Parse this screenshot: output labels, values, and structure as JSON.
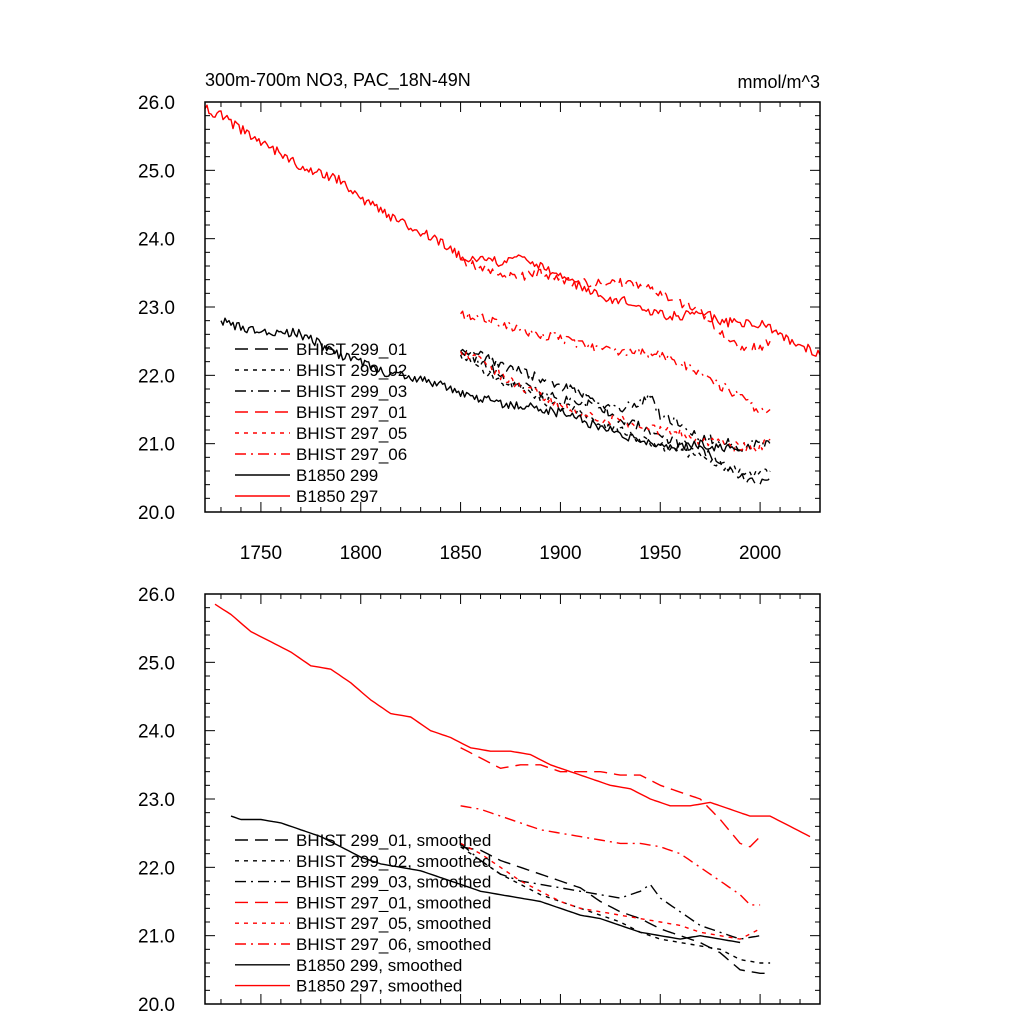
{
  "chart_data": [
    {
      "type": "line",
      "title": "300m-700m NO3, PAC_18N-49N",
      "units": "mmol/m^3",
      "xlim": [
        1722,
        2030
      ],
      "ylim": [
        20.0,
        26.0
      ],
      "xticks": [
        1750,
        1800,
        1850,
        1900,
        1950,
        2000
      ],
      "yticks": [
        "20.0",
        "21.0",
        "22.0",
        "23.0",
        "24.0",
        "25.0",
        "26.0"
      ],
      "legend_position": "lower-left",
      "noisy": true,
      "series": [
        {
          "name": "BHIST 299_01",
          "color": "#000000",
          "dash": "long-dash",
          "x": [
            1850,
            1860,
            1870,
            1880,
            1890,
            1900,
            1910,
            1920,
            1930,
            1940,
            1950,
            1960,
            1970,
            1980,
            1990,
            2000,
            2005
          ],
          "y": [
            22.35,
            22.3,
            22.15,
            22.05,
            21.95,
            21.85,
            21.75,
            21.55,
            21.35,
            21.25,
            21.1,
            21.0,
            20.9,
            20.75,
            20.5,
            20.4,
            20.5
          ]
        },
        {
          "name": "BHIST 299_02",
          "color": "#000000",
          "dash": "short-dash",
          "x": [
            1850,
            1860,
            1870,
            1880,
            1890,
            1900,
            1910,
            1920,
            1930,
            1940,
            1950,
            1960,
            1970,
            1980,
            1990,
            2000,
            2005
          ],
          "y": [
            22.3,
            22.1,
            21.9,
            21.8,
            21.65,
            21.55,
            21.45,
            21.3,
            21.2,
            21.05,
            20.95,
            20.9,
            20.8,
            20.7,
            20.6,
            20.55,
            20.6
          ]
        },
        {
          "name": "BHIST 299_03",
          "color": "#000000",
          "dash": "dash-dot",
          "x": [
            1850,
            1860,
            1870,
            1880,
            1890,
            1900,
            1910,
            1920,
            1930,
            1940,
            1945,
            1950,
            1960,
            1970,
            1980,
            1990,
            2000,
            2005
          ],
          "y": [
            22.35,
            22.2,
            22.0,
            21.85,
            21.75,
            21.65,
            21.6,
            21.55,
            21.5,
            21.6,
            21.75,
            21.4,
            21.3,
            21.1,
            21.05,
            20.95,
            21.0,
            21.0
          ]
        },
        {
          "name": "BHIST 297_01",
          "color": "#ff0000",
          "dash": "long-dash",
          "x": [
            1850,
            1860,
            1870,
            1880,
            1890,
            1900,
            1910,
            1920,
            1930,
            1940,
            1950,
            1960,
            1970,
            1980,
            1990,
            2000,
            2005
          ],
          "y": [
            23.7,
            23.55,
            23.45,
            23.45,
            23.5,
            23.4,
            23.35,
            23.35,
            23.35,
            23.3,
            23.2,
            23.05,
            22.95,
            22.65,
            22.4,
            22.4,
            22.5
          ]
        },
        {
          "name": "BHIST 297_05",
          "color": "#ff0000",
          "dash": "short-dash",
          "x": [
            1850,
            1860,
            1870,
            1880,
            1890,
            1900,
            1910,
            1920,
            1930,
            1940,
            1950,
            1960,
            1970,
            1980,
            1990,
            2000,
            2005
          ],
          "y": [
            22.35,
            22.2,
            22.0,
            21.85,
            21.7,
            21.55,
            21.45,
            21.35,
            21.35,
            21.25,
            21.2,
            21.15,
            21.05,
            21.0,
            20.95,
            20.95,
            21.05
          ]
        },
        {
          "name": "BHIST 297_06",
          "color": "#ff0000",
          "dash": "dash-dot",
          "x": [
            1850,
            1860,
            1870,
            1880,
            1890,
            1900,
            1910,
            1920,
            1930,
            1940,
            1950,
            1960,
            1970,
            1980,
            1990,
            2000,
            2005
          ],
          "y": [
            22.9,
            22.85,
            22.75,
            22.65,
            22.6,
            22.55,
            22.45,
            22.4,
            22.35,
            22.35,
            22.3,
            22.2,
            22.0,
            21.85,
            21.7,
            21.45,
            21.5
          ]
        },
        {
          "name": "B1850 299",
          "color": "#000000",
          "dash": "solid",
          "x": [
            1730,
            1740,
            1750,
            1760,
            1770,
            1780,
            1790,
            1800,
            1810,
            1820,
            1830,
            1840,
            1850,
            1860,
            1870,
            1880,
            1890,
            1900,
            1910,
            1920,
            1930,
            1940,
            1950,
            1960,
            1970,
            1980,
            1990
          ],
          "y": [
            22.8,
            22.7,
            22.65,
            22.65,
            22.6,
            22.45,
            22.3,
            22.2,
            22.05,
            22.0,
            21.95,
            21.85,
            21.75,
            21.65,
            21.6,
            21.55,
            21.5,
            21.45,
            21.35,
            21.25,
            21.15,
            21.05,
            21.0,
            20.95,
            21.0,
            20.95,
            20.9
          ]
        },
        {
          "name": "B1850 297",
          "color": "#ff0000",
          "dash": "solid",
          "x": [
            1722,
            1730,
            1740,
            1750,
            1760,
            1770,
            1780,
            1790,
            1800,
            1810,
            1820,
            1830,
            1840,
            1850,
            1860,
            1870,
            1880,
            1890,
            1900,
            1910,
            1920,
            1930,
            1940,
            1950,
            1960,
            1970,
            1980,
            1990,
            2000,
            2010,
            2020,
            2030
          ],
          "y": [
            25.9,
            25.8,
            25.6,
            25.4,
            25.25,
            25.05,
            24.95,
            24.85,
            24.6,
            24.4,
            24.25,
            24.1,
            23.95,
            23.75,
            23.7,
            23.65,
            23.7,
            23.6,
            23.45,
            23.3,
            23.15,
            23.1,
            23.0,
            22.9,
            22.85,
            22.95,
            22.8,
            22.75,
            22.75,
            22.6,
            22.45,
            22.3
          ]
        }
      ]
    },
    {
      "type": "line",
      "xlim": [
        1722,
        2030
      ],
      "ylim": [
        20.0,
        26.0
      ],
      "yticks": [
        "20.0",
        "21.0",
        "22.0",
        "23.0",
        "24.0",
        "25.0",
        "26.0"
      ],
      "legend_position": "lower-left",
      "noisy": false,
      "series": [
        {
          "name": "BHIST 299_01, smoothed",
          "color": "#000000",
          "dash": "long-dash",
          "x": [
            1850,
            1860,
            1870,
            1880,
            1890,
            1900,
            1910,
            1920,
            1930,
            1940,
            1950,
            1960,
            1970,
            1980,
            1990,
            2000,
            2005
          ],
          "y": [
            22.3,
            22.25,
            22.1,
            22.0,
            21.9,
            21.8,
            21.7,
            21.5,
            21.35,
            21.25,
            21.1,
            21.0,
            20.9,
            20.75,
            20.5,
            20.45,
            20.45
          ]
        },
        {
          "name": "BHIST 299_02, smoothed",
          "color": "#000000",
          "dash": "short-dash",
          "x": [
            1850,
            1860,
            1870,
            1880,
            1890,
            1900,
            1910,
            1920,
            1930,
            1940,
            1950,
            1960,
            1970,
            1980,
            1990,
            2000,
            2005
          ],
          "y": [
            22.3,
            22.1,
            21.9,
            21.75,
            21.6,
            21.5,
            21.4,
            21.3,
            21.2,
            21.05,
            20.95,
            20.9,
            20.85,
            20.8,
            20.65,
            20.6,
            20.6
          ]
        },
        {
          "name": "BHIST 299_03, smoothed",
          "color": "#000000",
          "dash": "dash-dot",
          "x": [
            1850,
            1860,
            1870,
            1880,
            1890,
            1900,
            1910,
            1920,
            1930,
            1940,
            1945,
            1950,
            1960,
            1970,
            1980,
            1990,
            2000
          ],
          "y": [
            22.35,
            22.1,
            21.9,
            21.8,
            21.75,
            21.7,
            21.65,
            21.6,
            21.55,
            21.65,
            21.75,
            21.55,
            21.35,
            21.15,
            21.05,
            20.95,
            21.0
          ]
        },
        {
          "name": "BHIST 297_01, smoothed",
          "color": "#ff0000",
          "dash": "long-dash",
          "x": [
            1850,
            1860,
            1870,
            1880,
            1890,
            1900,
            1910,
            1920,
            1930,
            1940,
            1950,
            1960,
            1970,
            1980,
            1990,
            1995,
            2000
          ],
          "y": [
            23.75,
            23.6,
            23.45,
            23.5,
            23.5,
            23.4,
            23.4,
            23.4,
            23.35,
            23.35,
            23.2,
            23.1,
            23.0,
            22.7,
            22.35,
            22.3,
            22.45
          ]
        },
        {
          "name": "BHIST 297_05, smoothed",
          "color": "#ff0000",
          "dash": "short-dash",
          "x": [
            1850,
            1860,
            1870,
            1880,
            1890,
            1900,
            1910,
            1920,
            1930,
            1940,
            1950,
            1960,
            1970,
            1980,
            1990,
            2000
          ],
          "y": [
            22.35,
            22.2,
            22.0,
            21.8,
            21.65,
            21.5,
            21.4,
            21.35,
            21.3,
            21.25,
            21.2,
            21.15,
            21.05,
            21.0,
            20.95,
            21.1
          ]
        },
        {
          "name": "BHIST 297_06, smoothed",
          "color": "#ff0000",
          "dash": "dash-dot",
          "x": [
            1850,
            1860,
            1870,
            1880,
            1890,
            1900,
            1910,
            1920,
            1930,
            1940,
            1950,
            1960,
            1970,
            1980,
            1990,
            1995,
            2000
          ],
          "y": [
            22.9,
            22.85,
            22.75,
            22.65,
            22.55,
            22.5,
            22.45,
            22.4,
            22.35,
            22.35,
            22.3,
            22.2,
            22.0,
            21.8,
            21.6,
            21.45,
            21.45
          ]
        },
        {
          "name": "B1850 299, smoothed",
          "color": "#000000",
          "dash": "solid",
          "x": [
            1735,
            1740,
            1750,
            1760,
            1770,
            1780,
            1790,
            1800,
            1810,
            1820,
            1830,
            1840,
            1850,
            1860,
            1870,
            1880,
            1890,
            1900,
            1910,
            1920,
            1930,
            1940,
            1950,
            1960,
            1970,
            1980,
            1990
          ],
          "y": [
            22.75,
            22.7,
            22.7,
            22.65,
            22.55,
            22.45,
            22.3,
            22.15,
            22.05,
            22.0,
            21.95,
            21.85,
            21.75,
            21.65,
            21.6,
            21.55,
            21.5,
            21.4,
            21.3,
            21.25,
            21.15,
            21.05,
            21.0,
            20.95,
            21.0,
            20.95,
            20.9
          ]
        },
        {
          "name": "B1850 297, smoothed",
          "color": "#ff0000",
          "dash": "solid",
          "x": [
            1727,
            1735,
            1745,
            1755,
            1765,
            1775,
            1785,
            1795,
            1805,
            1815,
            1825,
            1835,
            1845,
            1855,
            1865,
            1875,
            1885,
            1895,
            1905,
            1915,
            1925,
            1935,
            1945,
            1955,
            1965,
            1975,
            1985,
            1995,
            2005,
            2015,
            2025
          ],
          "y": [
            25.85,
            25.7,
            25.45,
            25.3,
            25.15,
            24.95,
            24.9,
            24.7,
            24.45,
            24.25,
            24.2,
            24.0,
            23.9,
            23.75,
            23.7,
            23.7,
            23.65,
            23.5,
            23.4,
            23.3,
            23.2,
            23.15,
            23.0,
            22.9,
            22.9,
            22.95,
            22.85,
            22.75,
            22.75,
            22.6,
            22.45
          ]
        }
      ]
    }
  ]
}
